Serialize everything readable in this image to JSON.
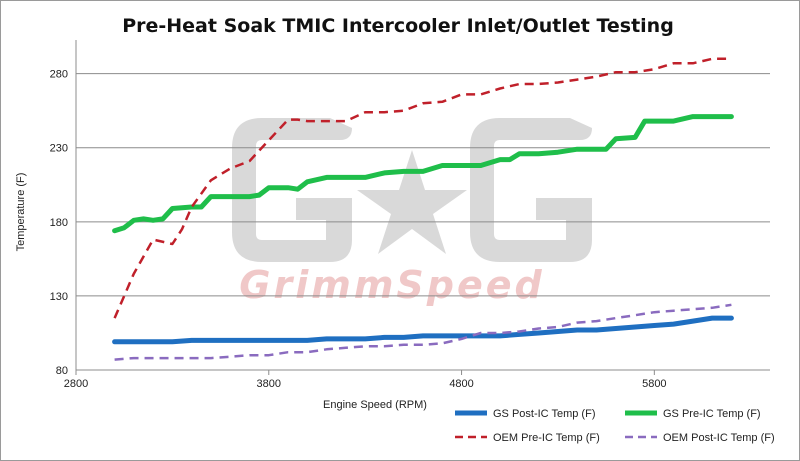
{
  "chart_data": {
    "type": "line",
    "title": "Pre-Heat Soak TMIC Intercooler Inlet/Outlet Testing",
    "xlabel": "Engine Speed (RPM)",
    "ylabel": "Temperature (F)",
    "xlim": [
      2800,
      6400
    ],
    "ylim": [
      80,
      300
    ],
    "xticks": [
      2800,
      3800,
      4800,
      5800
    ],
    "yticks": [
      80,
      130,
      180,
      230,
      280
    ],
    "grid": "horizontal",
    "legend_position": "bottom-right",
    "watermark": "GrimmSpeed",
    "series": [
      {
        "name": "GS Post-IC Temp (F)",
        "color": "#1f6fc1",
        "style": "solid",
        "x": [
          3000,
          3100,
          3200,
          3300,
          3400,
          3500,
          3600,
          3700,
          3800,
          3900,
          4000,
          4100,
          4200,
          4300,
          4400,
          4500,
          4600,
          4700,
          4800,
          4900,
          5000,
          5100,
          5200,
          5300,
          5400,
          5500,
          5600,
          5700,
          5800,
          5900,
          6000,
          6100,
          6200
        ],
        "values": [
          99,
          99,
          99,
          99,
          100,
          100,
          100,
          100,
          100,
          100,
          100,
          101,
          101,
          101,
          102,
          102,
          103,
          103,
          103,
          103,
          103,
          104,
          105,
          106,
          107,
          107,
          108,
          109,
          110,
          111,
          113,
          115,
          115
        ]
      },
      {
        "name": "GS Pre-IC Temp (F)",
        "color": "#1fbe4a",
        "style": "solid",
        "x": [
          3000,
          3050,
          3100,
          3150,
          3200,
          3250,
          3300,
          3400,
          3450,
          3500,
          3600,
          3700,
          3750,
          3800,
          3900,
          3950,
          4000,
          4100,
          4150,
          4200,
          4300,
          4400,
          4500,
          4550,
          4600,
          4700,
          4800,
          4850,
          4900,
          5000,
          5050,
          5100,
          5200,
          5300,
          5400,
          5500,
          5550,
          5600,
          5700,
          5750,
          5800,
          5900,
          6000,
          6100,
          6200
        ],
        "values": [
          174,
          176,
          181,
          182,
          181,
          182,
          189,
          190,
          190,
          197,
          197,
          197,
          198,
          203,
          203,
          202,
          207,
          210,
          210,
          210,
          210,
          213,
          214,
          214,
          214,
          218,
          218,
          218,
          218,
          222,
          222,
          226,
          226,
          227,
          229,
          229,
          229,
          236,
          237,
          248,
          248,
          248,
          251,
          251,
          251
        ]
      },
      {
        "name": "OEM Pre-IC Temp (F)",
        "color": "#c0202a",
        "style": "dashed",
        "x": [
          3000,
          3100,
          3200,
          3300,
          3350,
          3400,
          3500,
          3600,
          3700,
          3750,
          3800,
          3900,
          3950,
          4000,
          4100,
          4200,
          4300,
          4400,
          4500,
          4600,
          4700,
          4800,
          4900,
          5000,
          5100,
          5200,
          5300,
          5400,
          5500,
          5600,
          5700,
          5800,
          5900,
          6000,
          6100,
          6200
        ],
        "values": [
          115,
          145,
          168,
          165,
          175,
          190,
          208,
          216,
          221,
          228,
          235,
          249,
          249,
          248,
          248,
          248,
          254,
          254,
          255,
          260,
          261,
          266,
          266,
          270,
          273,
          273,
          274,
          276,
          278,
          281,
          281,
          283,
          287,
          287,
          290,
          290
        ]
      },
      {
        "name": "OEM Post-IC Temp (F)",
        "color": "#8a6bbf",
        "style": "dashed",
        "x": [
          3000,
          3100,
          3200,
          3300,
          3400,
          3500,
          3600,
          3700,
          3800,
          3900,
          4000,
          4100,
          4200,
          4300,
          4400,
          4500,
          4600,
          4700,
          4800,
          4900,
          5000,
          5100,
          5200,
          5300,
          5400,
          5500,
          5600,
          5700,
          5800,
          5900,
          6000,
          6100,
          6200
        ],
        "values": [
          87,
          88,
          88,
          88,
          88,
          88,
          89,
          90,
          90,
          92,
          92,
          94,
          95,
          96,
          96,
          97,
          97,
          98,
          101,
          105,
          105,
          106,
          108,
          109,
          112,
          113,
          115,
          117,
          119,
          120,
          121,
          122,
          124
        ]
      }
    ]
  }
}
